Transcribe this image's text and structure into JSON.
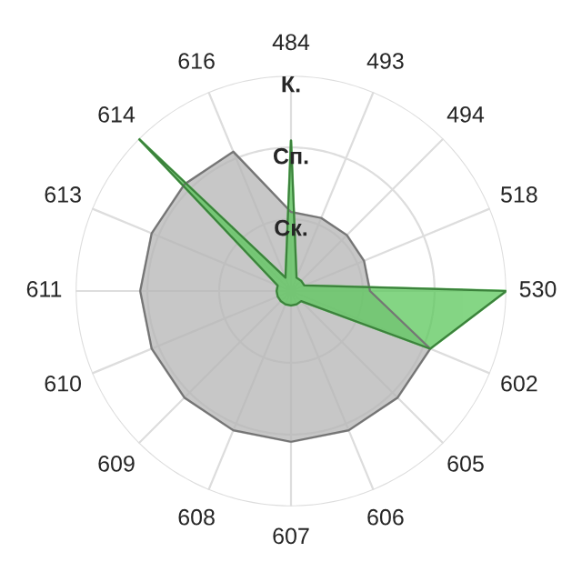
{
  "chart_data": {
    "type": "radar",
    "categories": [
      "484",
      "493",
      "494",
      "518",
      "530",
      "602",
      "605",
      "606",
      "607",
      "608",
      "609",
      "610",
      "611",
      "613",
      "614",
      "616"
    ],
    "series": [
      {
        "color": "#b4b4b4",
        "values": [
          1.1,
          1.1,
          1.1,
          1.1,
          1.1,
          2.1,
          2.1,
          2.1,
          2.1,
          2.1,
          2.1,
          2.1,
          2.1,
          2.1,
          2.1,
          2.1
        ]
      },
      {
        "color": "#5cc85c",
        "values": [
          2.1,
          0.2,
          0.2,
          0.2,
          3,
          2.1,
          0.2,
          0.2,
          0.2,
          0.2,
          0.2,
          0.2,
          0.2,
          0.2,
          3,
          0.2
        ]
      }
    ],
    "ylim": [
      0,
      3
    ],
    "yticks": [
      {
        "value": 1,
        "label": "Ск."
      },
      {
        "value": 2,
        "label": "Сп."
      },
      {
        "value": 3,
        "label": "К."
      }
    ],
    "grid": true
  }
}
